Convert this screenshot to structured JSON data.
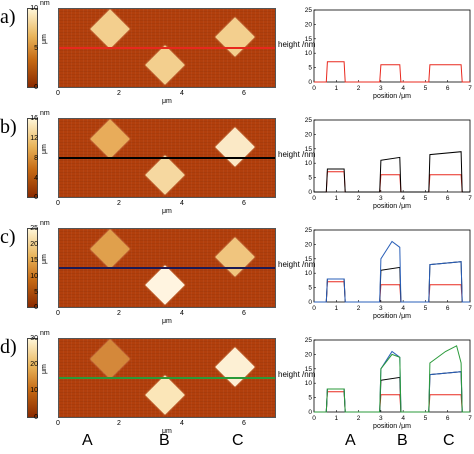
{
  "bottom_labels_left": [
    "A",
    "B",
    "C"
  ],
  "bottom_labels_right": [
    "A",
    "B",
    "C"
  ],
  "colors": {
    "red": "#e8281e",
    "black": "#000000",
    "blue": "#2a5fb8",
    "green": "#2a9a3a",
    "navy": "#1a1a55"
  },
  "panels": [
    {
      "label": "a)",
      "cbar_unit": "nm",
      "cbar_ticks": [
        "10",
        "5",
        "0"
      ],
      "cbar_side": "μm",
      "afm_x_ticks": [
        "0",
        "2",
        "4",
        "6"
      ],
      "afm_x_unit": "μm",
      "line_color": "#e8281e",
      "height_label": "height /nm",
      "chart_data": {
        "type": "line",
        "xlabel": "position /μm",
        "ylabel": "",
        "xlim": [
          0,
          7
        ],
        "ylim": [
          0,
          25
        ],
        "x_ticks": [
          "0",
          "1",
          "2",
          "3",
          "4",
          "5",
          "6",
          "7"
        ],
        "y_ticks": [
          "0",
          "5",
          "10",
          "15",
          "20",
          "25"
        ],
        "series": [
          {
            "color": "#e8281e",
            "x": [
              0,
              0.55,
              0.6,
              1.35,
              1.4,
              2.95,
              3.0,
              3.85,
              3.9,
              5.15,
              5.2,
              6.6,
              6.65,
              7
            ],
            "y": [
              0,
              0,
              7,
              7,
              0,
              0,
              6,
              6,
              0,
              0,
              6,
              6,
              0,
              0
            ]
          }
        ]
      }
    },
    {
      "label": "b)",
      "cbar_unit": "nm",
      "cbar_ticks": [
        "16",
        "12",
        "8",
        "4",
        "0"
      ],
      "cbar_side": "μm",
      "afm_x_ticks": [
        "0",
        "2",
        "4",
        "6"
      ],
      "afm_x_unit": "μm",
      "line_color": "#000000",
      "height_label": "height /nm",
      "chart_data": {
        "type": "line",
        "xlabel": "position /μm",
        "ylabel": "",
        "xlim": [
          0,
          7
        ],
        "ylim": [
          0,
          25
        ],
        "x_ticks": [
          "0",
          "1",
          "2",
          "3",
          "4",
          "5",
          "6",
          "7"
        ],
        "y_ticks": [
          "0",
          "5",
          "10",
          "15",
          "20",
          "25"
        ],
        "series": [
          {
            "color": "#e8281e",
            "x": [
              0,
              0.55,
              0.6,
              1.35,
              1.4,
              2.95,
              3.0,
              3.85,
              3.9,
              5.15,
              5.2,
              6.6,
              6.65,
              7
            ],
            "y": [
              0,
              0,
              7,
              7,
              0,
              0,
              6,
              6,
              0,
              0,
              6,
              6,
              0,
              0
            ]
          },
          {
            "color": "#000000",
            "x": [
              0,
              0.55,
              0.6,
              1.35,
              1.4,
              2.95,
              3.0,
              3.85,
              3.9,
              5.15,
              5.2,
              6.6,
              6.65,
              7
            ],
            "y": [
              0,
              0,
              8,
              8,
              0,
              0,
              11,
              12,
              0,
              0,
              13,
              14,
              0,
              0
            ]
          }
        ]
      }
    },
    {
      "label": "c)",
      "cbar_unit": "nm",
      "cbar_ticks": [
        "25",
        "20",
        "15",
        "10",
        "5",
        "0"
      ],
      "cbar_side": "μm",
      "afm_x_ticks": [
        "0",
        "2",
        "4",
        "6"
      ],
      "afm_x_unit": "μm",
      "line_color": "#1a1a55",
      "height_label": "height /nm",
      "chart_data": {
        "type": "line",
        "xlabel": "position /μm",
        "ylabel": "",
        "xlim": [
          0,
          7
        ],
        "ylim": [
          0,
          25
        ],
        "x_ticks": [
          "0",
          "1",
          "2",
          "3",
          "4",
          "5",
          "6",
          "7"
        ],
        "y_ticks": [
          "0",
          "5",
          "10",
          "15",
          "20",
          "25"
        ],
        "series": [
          {
            "color": "#e8281e",
            "x": [
              0,
              0.55,
              0.6,
              1.35,
              1.4,
              2.95,
              3.0,
              3.85,
              3.9,
              5.15,
              5.2,
              6.6,
              6.65,
              7
            ],
            "y": [
              0,
              0,
              7,
              7,
              0,
              0,
              6,
              6,
              0,
              0,
              6,
              6,
              0,
              0
            ]
          },
          {
            "color": "#000000",
            "x": [
              0,
              0.55,
              0.6,
              1.35,
              1.4,
              2.95,
              3.0,
              3.85,
              3.9,
              5.15,
              5.2,
              6.6,
              6.65,
              7
            ],
            "y": [
              0,
              0,
              8,
              8,
              0,
              0,
              11,
              12,
              0,
              0,
              13,
              14,
              0,
              0
            ]
          },
          {
            "color": "#2a5fb8",
            "x": [
              0,
              0.55,
              0.6,
              1.35,
              1.4,
              2.95,
              3.0,
              3.5,
              3.85,
              3.9,
              5.15,
              5.2,
              6.6,
              6.65,
              7
            ],
            "y": [
              0,
              0,
              8,
              8,
              0,
              0,
              15,
              21,
              19,
              0,
              0,
              13,
              14,
              0,
              0
            ]
          }
        ]
      }
    },
    {
      "label": "d)",
      "cbar_unit": "nm",
      "cbar_ticks": [
        "30",
        "20",
        "10",
        "0"
      ],
      "cbar_side": "μm",
      "afm_x_ticks": [
        "0",
        "2",
        "4",
        "6"
      ],
      "afm_x_unit": "μm",
      "line_color": "#2a9a3a",
      "height_label": "height /nm",
      "chart_data": {
        "type": "line",
        "xlabel": "position /μm",
        "ylabel": "",
        "xlim": [
          0,
          7
        ],
        "ylim": [
          0,
          25
        ],
        "x_ticks": [
          "0",
          "1",
          "2",
          "3",
          "4",
          "5",
          "6",
          "7"
        ],
        "y_ticks": [
          "0",
          "5",
          "10",
          "15",
          "20",
          "25"
        ],
        "series": [
          {
            "color": "#e8281e",
            "x": [
              0,
              0.55,
              0.6,
              1.35,
              1.4,
              2.95,
              3.0,
              3.85,
              3.9,
              5.15,
              5.2,
              6.6,
              6.65,
              7
            ],
            "y": [
              0,
              0,
              7,
              7,
              0,
              0,
              6,
              6,
              0,
              0,
              6,
              6,
              0,
              0
            ]
          },
          {
            "color": "#000000",
            "x": [
              0,
              0.55,
              0.6,
              1.35,
              1.4,
              2.95,
              3.0,
              3.85,
              3.9,
              5.15,
              5.2,
              6.6,
              6.65,
              7
            ],
            "y": [
              0,
              0,
              8,
              8,
              0,
              0,
              11,
              12,
              0,
              0,
              13,
              14,
              0,
              0
            ]
          },
          {
            "color": "#2a5fb8",
            "x": [
              0,
              0.55,
              0.6,
              1.35,
              1.4,
              2.95,
              3.0,
              3.5,
              3.85,
              3.9,
              5.15,
              5.2,
              6.6,
              6.65,
              7
            ],
            "y": [
              0,
              0,
              8,
              8,
              0,
              0,
              15,
              21,
              19,
              0,
              0,
              13,
              14,
              0,
              0
            ]
          },
          {
            "color": "#2a9a3a",
            "x": [
              0,
              0.55,
              0.6,
              1.35,
              1.4,
              2.95,
              3.0,
              3.5,
              3.85,
              3.9,
              5.15,
              5.2,
              5.9,
              6.4,
              6.6,
              6.65,
              7
            ],
            "y": [
              0,
              0,
              8,
              8,
              0,
              0,
              15,
              20,
              19,
              0,
              0,
              17,
              21,
              23,
              17,
              0,
              0
            ]
          }
        ]
      }
    }
  ]
}
